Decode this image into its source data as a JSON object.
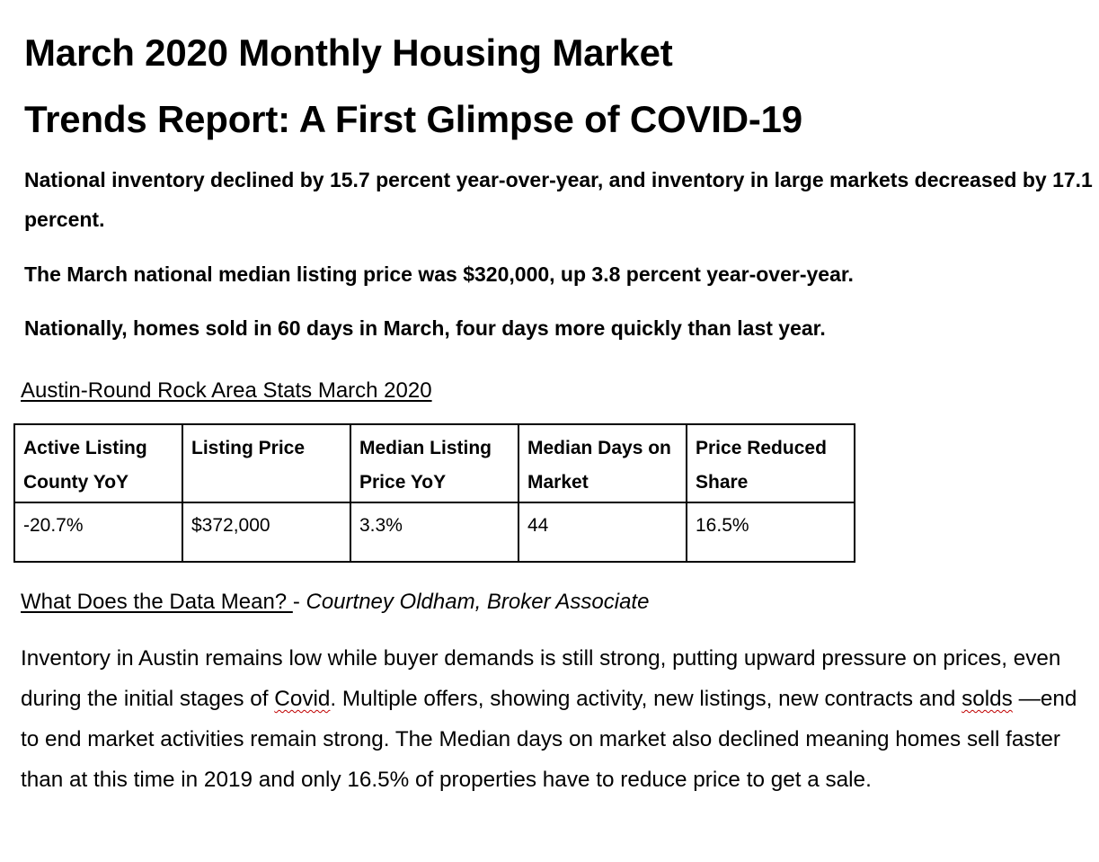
{
  "title": {
    "line1": "March 2020 Monthly Housing Market",
    "line2": "Trends Report: A First Glimpse of COVID-19"
  },
  "highlights": [
    "National inventory declined by 15.7 percent year-over-year, and inventory in large markets decreased by 17.1 percent.",
    "The March national median listing price was $320,000, up 3.8 percent year-over-year.",
    "Nationally, homes sold in 60 days in March, four days more quickly than last year."
  ],
  "stats_section": {
    "heading": "Austin-Round Rock Area Stats March 2020",
    "columns": [
      "Active Listing County YoY",
      "Listing Price",
      "Median Listing Price YoY",
      "Median Days on Market",
      "Price Reduced Share"
    ],
    "values": [
      "-20.7%",
      "$372,000",
      "3.3%",
      "44",
      "16.5%"
    ]
  },
  "meaning": {
    "heading": "What Does the Data Mean? ",
    "separator": "- ",
    "author": "Courtney Oldham, Broker Associate",
    "body": {
      "part1": "Inventory in Austin remains low while buyer demands is still strong, putting upward pressure on prices, even during the initial stages of ",
      "word1": "Covid",
      "part2": ". Multiple offers, showing activity, new listings, new contracts and ",
      "word2": "solds",
      "part3": " —end to end market activities remain strong. The Median days on market also declined meaning homes sell faster than at this time in 2019 and only 16.5% of properties have to reduce price to get a sale."
    }
  },
  "colors": {
    "text": "#000000",
    "spellcheck_underline": "#c00000"
  }
}
